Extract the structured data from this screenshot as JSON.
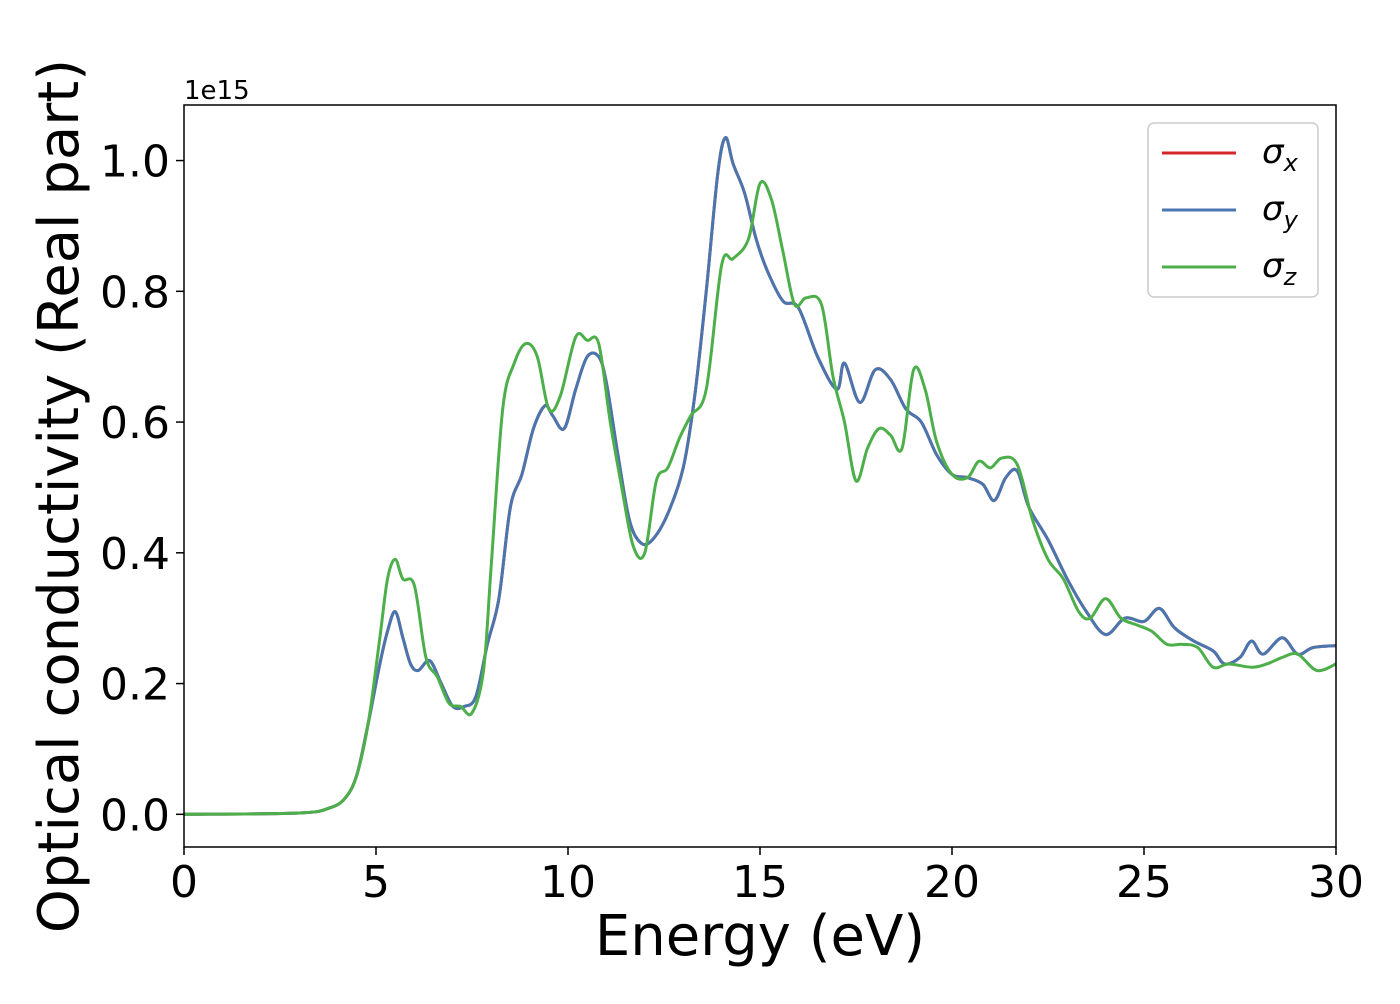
{
  "chart_data": {
    "type": "line",
    "xlabel": "Energy (eV)",
    "ylabel": "Optical conductivity (Real part)",
    "y_offset_label": "1e15",
    "xlim": [
      0,
      30
    ],
    "ylim": [
      -0.05,
      1.085
    ],
    "x_ticks": [
      0,
      5,
      10,
      15,
      20,
      25,
      30
    ],
    "x_tick_labels": [
      "0",
      "5",
      "10",
      "15",
      "20",
      "25",
      "30"
    ],
    "y_ticks": [
      0.0,
      0.2,
      0.4,
      0.6,
      0.8,
      1.0
    ],
    "y_tick_labels": [
      "0.0",
      "0.2",
      "0.4",
      "0.6",
      "0.8",
      "1.0"
    ],
    "grid": false,
    "legend_position": "top-right",
    "series": [
      {
        "name": "σx",
        "legend_symbol": "σ",
        "legend_subscript": "x",
        "color": "#d62728",
        "points": [
          [
            0,
            0.0
          ],
          [
            3,
            0.002
          ],
          [
            3.8,
            0.01
          ],
          [
            4.2,
            0.025
          ],
          [
            4.5,
            0.06
          ],
          [
            4.8,
            0.14
          ],
          [
            5.1,
            0.23
          ],
          [
            5.3,
            0.28
          ],
          [
            5.5,
            0.31
          ],
          [
            5.7,
            0.27
          ],
          [
            5.9,
            0.23
          ],
          [
            6.1,
            0.22
          ],
          [
            6.4,
            0.235
          ],
          [
            6.7,
            0.2
          ],
          [
            7.0,
            0.165
          ],
          [
            7.3,
            0.165
          ],
          [
            7.6,
            0.18
          ],
          [
            7.9,
            0.26
          ],
          [
            8.2,
            0.33
          ],
          [
            8.5,
            0.47
          ],
          [
            8.8,
            0.52
          ],
          [
            9.1,
            0.59
          ],
          [
            9.4,
            0.625
          ],
          [
            9.6,
            0.61
          ],
          [
            9.9,
            0.59
          ],
          [
            10.2,
            0.65
          ],
          [
            10.5,
            0.7
          ],
          [
            10.8,
            0.7
          ],
          [
            11.0,
            0.66
          ],
          [
            11.3,
            0.55
          ],
          [
            11.6,
            0.45
          ],
          [
            11.9,
            0.415
          ],
          [
            12.2,
            0.42
          ],
          [
            12.6,
            0.46
          ],
          [
            13.0,
            0.53
          ],
          [
            13.3,
            0.64
          ],
          [
            13.6,
            0.8
          ],
          [
            13.9,
            0.98
          ],
          [
            14.1,
            1.035
          ],
          [
            14.3,
            0.995
          ],
          [
            14.6,
            0.95
          ],
          [
            14.9,
            0.88
          ],
          [
            15.2,
            0.83
          ],
          [
            15.6,
            0.785
          ],
          [
            16.0,
            0.775
          ],
          [
            16.5,
            0.7
          ],
          [
            17.0,
            0.65
          ],
          [
            17.2,
            0.69
          ],
          [
            17.6,
            0.63
          ],
          [
            18.0,
            0.68
          ],
          [
            18.4,
            0.665
          ],
          [
            18.8,
            0.62
          ],
          [
            19.2,
            0.6
          ],
          [
            19.6,
            0.55
          ],
          [
            20.0,
            0.52
          ],
          [
            20.4,
            0.515
          ],
          [
            20.8,
            0.505
          ],
          [
            21.1,
            0.48
          ],
          [
            21.4,
            0.515
          ],
          [
            21.7,
            0.525
          ],
          [
            22.0,
            0.47
          ],
          [
            22.5,
            0.42
          ],
          [
            23.0,
            0.36
          ],
          [
            23.5,
            0.31
          ],
          [
            24.0,
            0.275
          ],
          [
            24.5,
            0.3
          ],
          [
            25.0,
            0.295
          ],
          [
            25.4,
            0.315
          ],
          [
            25.8,
            0.285
          ],
          [
            26.3,
            0.265
          ],
          [
            26.8,
            0.25
          ],
          [
            27.1,
            0.23
          ],
          [
            27.5,
            0.24
          ],
          [
            27.8,
            0.265
          ],
          [
            28.1,
            0.245
          ],
          [
            28.6,
            0.27
          ],
          [
            29.0,
            0.245
          ],
          [
            29.4,
            0.255
          ],
          [
            30.0,
            0.258
          ]
        ]
      },
      {
        "name": "σy",
        "legend_symbol": "σ",
        "legend_subscript": "y",
        "color": "#4a76b0",
        "points": [
          [
            0,
            0.0
          ],
          [
            3,
            0.002
          ],
          [
            3.8,
            0.01
          ],
          [
            4.2,
            0.025
          ],
          [
            4.5,
            0.06
          ],
          [
            4.8,
            0.14
          ],
          [
            5.1,
            0.23
          ],
          [
            5.3,
            0.28
          ],
          [
            5.5,
            0.31
          ],
          [
            5.7,
            0.27
          ],
          [
            5.9,
            0.23
          ],
          [
            6.1,
            0.22
          ],
          [
            6.4,
            0.235
          ],
          [
            6.7,
            0.2
          ],
          [
            7.0,
            0.165
          ],
          [
            7.3,
            0.165
          ],
          [
            7.6,
            0.18
          ],
          [
            7.9,
            0.26
          ],
          [
            8.2,
            0.33
          ],
          [
            8.5,
            0.47
          ],
          [
            8.8,
            0.52
          ],
          [
            9.1,
            0.59
          ],
          [
            9.4,
            0.625
          ],
          [
            9.6,
            0.61
          ],
          [
            9.9,
            0.59
          ],
          [
            10.2,
            0.65
          ],
          [
            10.5,
            0.7
          ],
          [
            10.8,
            0.7
          ],
          [
            11.0,
            0.66
          ],
          [
            11.3,
            0.55
          ],
          [
            11.6,
            0.45
          ],
          [
            11.9,
            0.415
          ],
          [
            12.2,
            0.42
          ],
          [
            12.6,
            0.46
          ],
          [
            13.0,
            0.53
          ],
          [
            13.3,
            0.64
          ],
          [
            13.6,
            0.8
          ],
          [
            13.9,
            0.98
          ],
          [
            14.1,
            1.035
          ],
          [
            14.3,
            0.995
          ],
          [
            14.6,
            0.95
          ],
          [
            14.9,
            0.88
          ],
          [
            15.2,
            0.83
          ],
          [
            15.6,
            0.785
          ],
          [
            16.0,
            0.775
          ],
          [
            16.5,
            0.7
          ],
          [
            17.0,
            0.65
          ],
          [
            17.2,
            0.69
          ],
          [
            17.6,
            0.63
          ],
          [
            18.0,
            0.68
          ],
          [
            18.4,
            0.665
          ],
          [
            18.8,
            0.62
          ],
          [
            19.2,
            0.6
          ],
          [
            19.6,
            0.55
          ],
          [
            20.0,
            0.52
          ],
          [
            20.4,
            0.515
          ],
          [
            20.8,
            0.505
          ],
          [
            21.1,
            0.48
          ],
          [
            21.4,
            0.515
          ],
          [
            21.7,
            0.525
          ],
          [
            22.0,
            0.47
          ],
          [
            22.5,
            0.42
          ],
          [
            23.0,
            0.36
          ],
          [
            23.5,
            0.31
          ],
          [
            24.0,
            0.275
          ],
          [
            24.5,
            0.3
          ],
          [
            25.0,
            0.295
          ],
          [
            25.4,
            0.315
          ],
          [
            25.8,
            0.285
          ],
          [
            26.3,
            0.265
          ],
          [
            26.8,
            0.25
          ],
          [
            27.1,
            0.23
          ],
          [
            27.5,
            0.24
          ],
          [
            27.8,
            0.265
          ],
          [
            28.1,
            0.245
          ],
          [
            28.6,
            0.27
          ],
          [
            29.0,
            0.245
          ],
          [
            29.4,
            0.255
          ],
          [
            30.0,
            0.258
          ]
        ]
      },
      {
        "name": "σz",
        "legend_symbol": "σ",
        "legend_subscript": "z",
        "color": "#4daf4a",
        "points": [
          [
            0,
            0.0
          ],
          [
            3,
            0.002
          ],
          [
            3.8,
            0.01
          ],
          [
            4.2,
            0.025
          ],
          [
            4.5,
            0.06
          ],
          [
            4.8,
            0.14
          ],
          [
            5.1,
            0.27
          ],
          [
            5.3,
            0.36
          ],
          [
            5.5,
            0.39
          ],
          [
            5.7,
            0.36
          ],
          [
            6.0,
            0.35
          ],
          [
            6.3,
            0.24
          ],
          [
            6.6,
            0.21
          ],
          [
            6.9,
            0.17
          ],
          [
            7.2,
            0.165
          ],
          [
            7.5,
            0.155
          ],
          [
            7.8,
            0.22
          ],
          [
            8.0,
            0.38
          ],
          [
            8.3,
            0.62
          ],
          [
            8.6,
            0.69
          ],
          [
            8.9,
            0.72
          ],
          [
            9.2,
            0.7
          ],
          [
            9.5,
            0.62
          ],
          [
            9.8,
            0.64
          ],
          [
            10.2,
            0.73
          ],
          [
            10.5,
            0.725
          ],
          [
            10.8,
            0.72
          ],
          [
            11.1,
            0.6
          ],
          [
            11.4,
            0.5
          ],
          [
            11.7,
            0.41
          ],
          [
            12.0,
            0.4
          ],
          [
            12.3,
            0.51
          ],
          [
            12.6,
            0.53
          ],
          [
            12.9,
            0.575
          ],
          [
            13.2,
            0.61
          ],
          [
            13.6,
            0.65
          ],
          [
            14.0,
            0.84
          ],
          [
            14.3,
            0.85
          ],
          [
            14.7,
            0.88
          ],
          [
            15.0,
            0.965
          ],
          [
            15.3,
            0.94
          ],
          [
            15.6,
            0.86
          ],
          [
            15.9,
            0.78
          ],
          [
            16.2,
            0.79
          ],
          [
            16.6,
            0.78
          ],
          [
            16.9,
            0.67
          ],
          [
            17.2,
            0.6
          ],
          [
            17.5,
            0.51
          ],
          [
            17.8,
            0.56
          ],
          [
            18.1,
            0.59
          ],
          [
            18.4,
            0.58
          ],
          [
            18.7,
            0.56
          ],
          [
            19.0,
            0.68
          ],
          [
            19.3,
            0.65
          ],
          [
            19.6,
            0.57
          ],
          [
            20.0,
            0.52
          ],
          [
            20.4,
            0.515
          ],
          [
            20.7,
            0.54
          ],
          [
            21.0,
            0.53
          ],
          [
            21.3,
            0.545
          ],
          [
            21.7,
            0.535
          ],
          [
            22.1,
            0.45
          ],
          [
            22.5,
            0.39
          ],
          [
            22.9,
            0.36
          ],
          [
            23.3,
            0.31
          ],
          [
            23.6,
            0.3
          ],
          [
            24.0,
            0.33
          ],
          [
            24.4,
            0.3
          ],
          [
            24.8,
            0.29
          ],
          [
            25.2,
            0.28
          ],
          [
            25.6,
            0.26
          ],
          [
            26.0,
            0.26
          ],
          [
            26.4,
            0.255
          ],
          [
            26.8,
            0.225
          ],
          [
            27.2,
            0.23
          ],
          [
            27.8,
            0.225
          ],
          [
            28.2,
            0.23
          ],
          [
            28.6,
            0.24
          ],
          [
            29.0,
            0.245
          ],
          [
            29.5,
            0.22
          ],
          [
            30.0,
            0.23
          ]
        ]
      }
    ]
  }
}
